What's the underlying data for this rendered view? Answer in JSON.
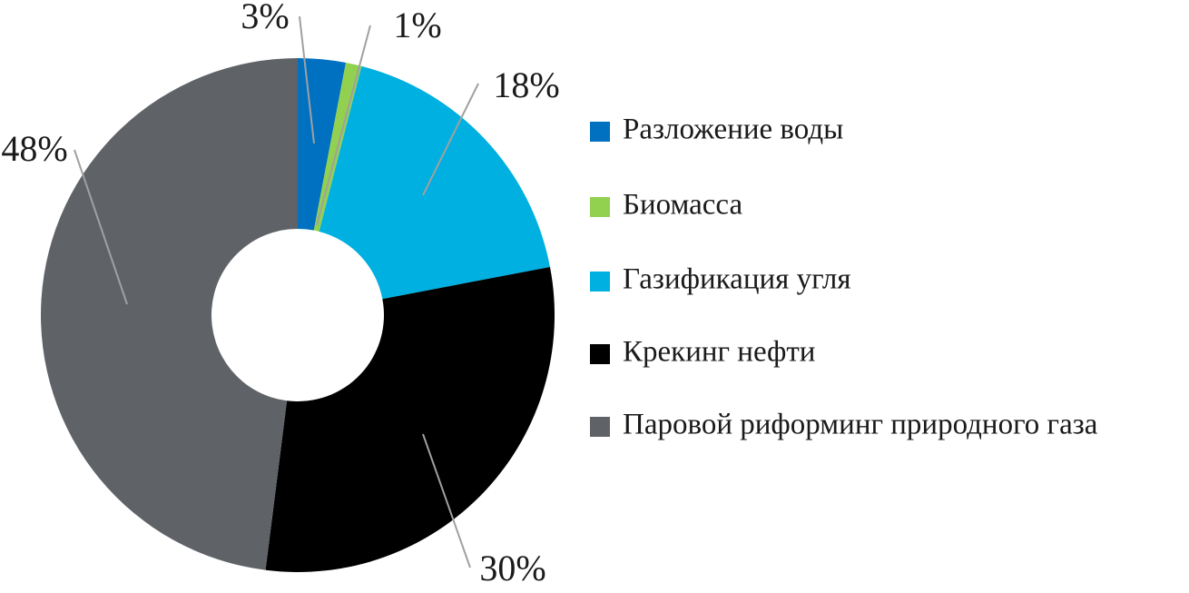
{
  "chart_data": {
    "type": "donut",
    "categories": [
      "Разложение воды",
      "Биомасса",
      "Газификация угля",
      "Крекинг нефти",
      "Паровой риформинг природного газа"
    ],
    "values": [
      3,
      1,
      18,
      30,
      48
    ],
    "value_labels": [
      "3%",
      "1%",
      "18%",
      "30%",
      "48%"
    ],
    "colors": [
      "#0070c0",
      "#92d050",
      "#00b0e0",
      "#000000",
      "#5f6368"
    ],
    "legend": "right"
  }
}
